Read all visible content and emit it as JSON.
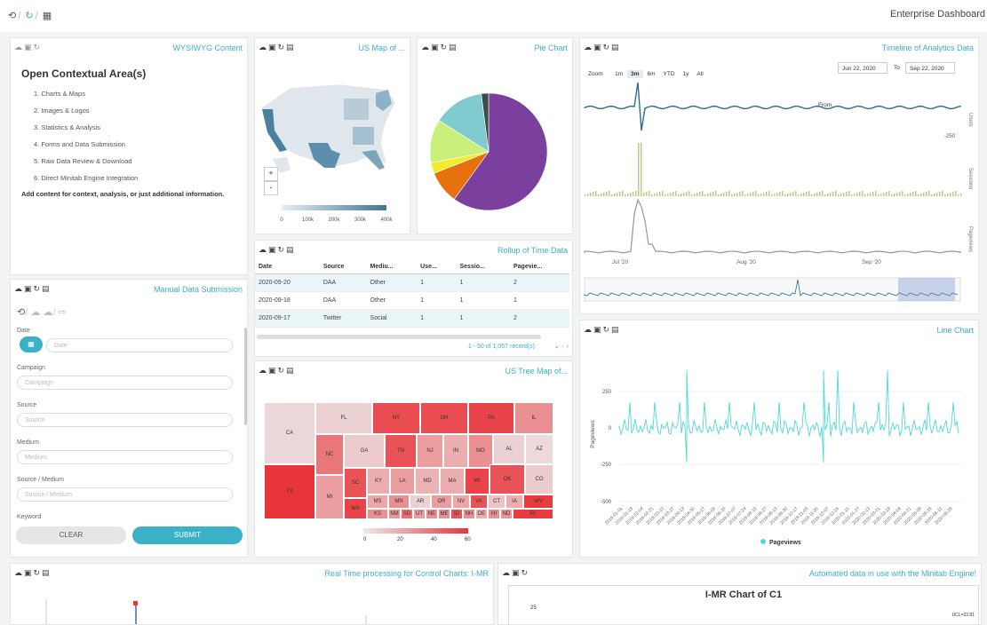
{
  "app": {
    "title": "Enterprise Dashboard",
    "toolbar_icons": [
      "history-icon",
      "refresh-icon",
      "calendar-icon"
    ]
  },
  "panel_icons": "☁ ▣ ↻ ▤",
  "wysiwyg": {
    "title": "WYSIWYG Content",
    "heading": "Open Contextual Area(s)",
    "items": [
      "1. Charts & Maps",
      "2. Images & Logos",
      "3. Statistics & Analysis",
      "4. Forms and Data Submission",
      "5. Raw Data Review & Download",
      "6. Direct Minitab Engine Integration"
    ],
    "note": "Add content for context, analysis, or just additional information."
  },
  "manual": {
    "title": "Manual Data Submission",
    "fields": [
      {
        "label": "Date",
        "placeholder": "Date"
      },
      {
        "label": "Campaign",
        "placeholder": "Campaign"
      },
      {
        "label": "Source",
        "placeholder": "Source"
      },
      {
        "label": "Medium",
        "placeholder": "Medium"
      },
      {
        "label": "Source / Medium",
        "placeholder": "Source / Medium"
      },
      {
        "label": "Keyword",
        "placeholder": ""
      }
    ],
    "clear_label": "CLEAR",
    "submit_label": "SUBMIT"
  },
  "us_map": {
    "title": "US Map of ...",
    "legend_ticks": [
      "0",
      "100k",
      "200k",
      "300k",
      "400k"
    ],
    "zoom_in": "+",
    "zoom_out": "-",
    "color_dark": "#4a7f9e",
    "color_light": "#dfe6ec"
  },
  "pie": {
    "title": "Pie Chart"
  },
  "timeline": {
    "title": "Timeline of Analytics Data",
    "zoom_label": "Zoom",
    "zoom_options": [
      "1m",
      "3m",
      "6m",
      "YTD",
      "1y",
      "All"
    ],
    "zoom_selected": "3m",
    "from_label": "From",
    "from_value": "Jun 22, 2020",
    "to_label": "To",
    "to_value": "Sep 22, 2020",
    "axis_labels": [
      "Users",
      "Sessions",
      "Pageviews"
    ],
    "y_tick": "-250",
    "x_ticks": [
      "Jul '20",
      "Aug '20",
      "Sep '20"
    ]
  },
  "rollup": {
    "title": "Rollup of Time Data",
    "columns": [
      "Date",
      "Source",
      "Mediu...",
      "Use...",
      "Sessio...",
      "Pagevie..."
    ],
    "rows": [
      [
        "2020-09-20",
        "DAA",
        "Other",
        "1",
        "1",
        "2"
      ],
      [
        "2020-09-18",
        "DAA",
        "Other",
        "1",
        "1",
        "1"
      ],
      [
        "2020-09-17",
        "Twitter",
        "Social",
        "1",
        "1",
        "2"
      ]
    ],
    "pagination": "1 - 50 of 1,057 record(s)"
  },
  "treemap": {
    "title": "US Tree Map of...",
    "legend_ticks": [
      "0",
      "20",
      "40",
      "60"
    ],
    "color_high": "#e8353a",
    "color_low": "#ece9e9"
  },
  "line_chart": {
    "title": "Line Chart",
    "ylabel": "Pageviews",
    "legend": "Pageviews",
    "color": "#4fd8d8",
    "y_ticks": [
      "250",
      "0",
      "-250",
      "-500"
    ],
    "x_ticks": [
      "2019-01-01",
      "2019-01-18",
      "2019-02-04",
      "2019-02-21",
      "2019-03-10",
      "2019-03-27",
      "2019-04-13",
      "2019-04-30",
      "2019-05-17",
      "2019-06-03",
      "2019-06-20",
      "2019-07-07",
      "2019-07-24",
      "2019-08-10",
      "2019-08-27",
      "2019-09-13",
      "2019-09-30",
      "2019-10-17",
      "2019-11-03",
      "2019-11-20",
      "2019-12-07",
      "2019-12-24",
      "2020-01-10",
      "2020-01-27",
      "2020-02-13",
      "2020-03-01",
      "2020-03-18",
      "2020-04-04",
      "2020-04-21",
      "2020-05-08",
      "2020-05-25",
      "2020-06-11",
      "2020-06-28"
    ]
  },
  "control": {
    "title": "Real Time processing for Control Charts: I-MR"
  },
  "minitab": {
    "title": "Automated data in use with the Minitab Engine!",
    "chart_title": "I-MR Chart of C1",
    "y_tick": "25",
    "ucl": "UCL=22.81"
  },
  "chart_data": [
    {
      "type": "pie",
      "title": "Pie Chart",
      "slices": [
        {
          "label": "Purple",
          "value": 60,
          "color": "#7b3f9e"
        },
        {
          "label": "Orange",
          "value": 9,
          "color": "#e8700f"
        },
        {
          "label": "Yellow",
          "value": 3,
          "color": "#f2ec2e"
        },
        {
          "label": "Green",
          "value": 12,
          "color": "#c8f07a"
        },
        {
          "label": "Teal",
          "value": 14,
          "color": "#7fcbd0"
        },
        {
          "label": "Dark",
          "value": 2,
          "color": "#3f4a4a"
        }
      ]
    },
    {
      "type": "heatmap",
      "title": "US Tree Map of...",
      "cells": [
        {
          "state": "CA",
          "value": 6
        },
        {
          "state": "FL",
          "value": 8
        },
        {
          "state": "NY",
          "value": 52
        },
        {
          "state": "OH",
          "value": 52
        },
        {
          "state": "PA",
          "value": 55
        },
        {
          "state": "IL",
          "value": 30
        },
        {
          "state": "TX",
          "value": 60
        },
        {
          "state": "NC",
          "value": 38
        },
        {
          "state": "GA",
          "value": 10
        },
        {
          "state": "TN",
          "value": 50
        },
        {
          "state": "NJ",
          "value": 25
        },
        {
          "state": "IN",
          "value": 20
        },
        {
          "state": "MO",
          "value": 30
        },
        {
          "state": "AL",
          "value": 8
        },
        {
          "state": "AZ",
          "value": 5
        },
        {
          "state": "MI",
          "value": 25
        },
        {
          "state": "SC",
          "value": 50
        },
        {
          "state": "KY",
          "value": 20
        },
        {
          "state": "LA",
          "value": 25
        },
        {
          "state": "MD",
          "value": 18
        },
        {
          "state": "MA",
          "value": 20
        },
        {
          "state": "WI",
          "value": 55
        },
        {
          "state": "OK",
          "value": 50
        },
        {
          "state": "CO",
          "value": 10
        },
        {
          "state": "WA",
          "value": 55
        },
        {
          "state": "MS",
          "value": 22
        },
        {
          "state": "MN",
          "value": 30
        },
        {
          "state": "AR",
          "value": 8
        },
        {
          "state": "OR",
          "value": 25
        },
        {
          "state": "NV",
          "value": 22
        },
        {
          "state": "VA",
          "value": 50
        },
        {
          "state": "CT",
          "value": 12
        },
        {
          "state": "IA",
          "value": 20
        },
        {
          "state": "WV",
          "value": 58
        },
        {
          "state": "KS",
          "value": 30
        },
        {
          "state": "NM",
          "value": 28
        },
        {
          "state": "SD",
          "value": 40
        },
        {
          "state": "UT",
          "value": 25
        },
        {
          "state": "NE",
          "value": 30
        },
        {
          "state": "ME",
          "value": 30
        },
        {
          "state": "ID",
          "value": 50
        },
        {
          "state": "NH",
          "value": 30
        },
        {
          "state": "DE",
          "value": 20
        },
        {
          "state": "HI",
          "value": 30
        },
        {
          "state": "ND",
          "value": 28
        },
        {
          "state": "RI",
          "value": 58
        }
      ]
    }
  ]
}
